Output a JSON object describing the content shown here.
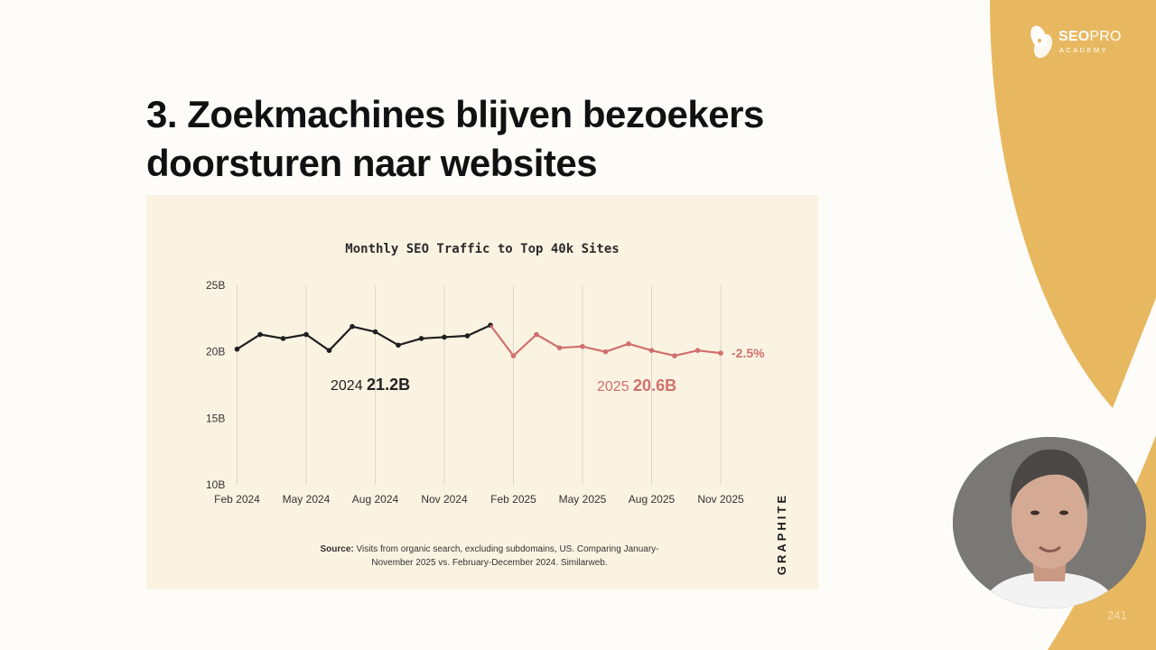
{
  "brand": {
    "logo_seo": "SEO",
    "logo_pro": "PRO",
    "logo_sub": "ACADEMY",
    "accent_color": "#e8b860"
  },
  "slide": {
    "title_line1": "3. Zoekmachines blijven bezoekers",
    "title_line2": "doorsturen naar websites",
    "number": "241"
  },
  "chart_panel": {
    "source_label": "Source:",
    "source_text": "Visits from organic search, excluding subdomains, US. Comparing January-November 2025 vs. February-December 2024. Similarweb.",
    "brand_vertical": "GRAPHITE",
    "background": "#fbf3e2"
  },
  "chart_data": {
    "type": "line",
    "title": "Monthly SEO Traffic to Top 40k Sites",
    "xlabel": "",
    "ylabel": "",
    "ylim": [
      10,
      25
    ],
    "y_ticks": [
      "10B",
      "15B",
      "20B",
      "25B"
    ],
    "y_tick_values": [
      10,
      15,
      20,
      25
    ],
    "x_tick_labels": [
      "Feb 2024",
      "May 2024",
      "Aug 2024",
      "Nov 2024",
      "Feb 2025",
      "May 2025",
      "Aug 2025",
      "Nov 2025"
    ],
    "x_tick_months": [
      0,
      3,
      6,
      9,
      12,
      15,
      18,
      21
    ],
    "x_first_month": "2024-02",
    "grid": "vertical",
    "series": [
      {
        "color": "#1f1f1f",
        "months": [
          "2024-02",
          "2024-03",
          "2024-04",
          "2024-05",
          "2024-06",
          "2024-07",
          "2024-08",
          "2024-09",
          "2024-10",
          "2024-11",
          "2024-12",
          "2025-01"
        ],
        "values": [
          20.2,
          21.3,
          21.0,
          21.3,
          20.1,
          21.9,
          21.5,
          20.5,
          21.0,
          21.1,
          21.2,
          22.0
        ],
        "label_year": "2024",
        "label_total": "21.2B"
      },
      {
        "color": "#d0706e",
        "months": [
          "2025-01",
          "2025-02",
          "2025-03",
          "2025-04",
          "2025-05",
          "2025-06",
          "2025-07",
          "2025-08",
          "2025-09",
          "2025-10",
          "2025-11"
        ],
        "values": [
          22.0,
          19.7,
          21.3,
          20.3,
          20.4,
          20.0,
          20.6,
          20.1,
          19.7,
          20.1,
          19.9
        ],
        "label_year": "2025",
        "label_total": "20.6B"
      }
    ],
    "change_label": "-2.5%"
  }
}
